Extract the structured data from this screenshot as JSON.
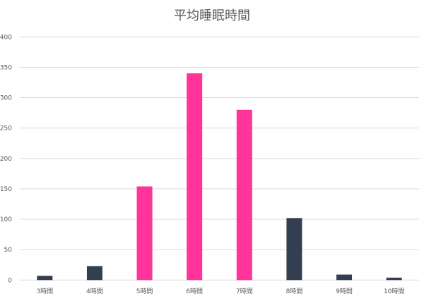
{
  "chart_data": {
    "type": "bar",
    "title": "平均睡眠時間",
    "categories": [
      "3時間",
      "4時間",
      "5時間",
      "6時間",
      "7時間",
      "8時間",
      "9時間",
      "10時間"
    ],
    "values": [
      7,
      23,
      154,
      340,
      280,
      102,
      9,
      4
    ],
    "bar_colors": [
      "#333F50",
      "#333F50",
      "#FF3399",
      "#FF3399",
      "#FF3399",
      "#333F50",
      "#333F50",
      "#333F50"
    ],
    "ylim": [
      0,
      400
    ],
    "yticks": [
      0,
      50,
      100,
      150,
      200,
      250,
      300,
      350,
      400
    ],
    "grid": true,
    "legend": "none",
    "xlabel": "",
    "ylabel": ""
  }
}
